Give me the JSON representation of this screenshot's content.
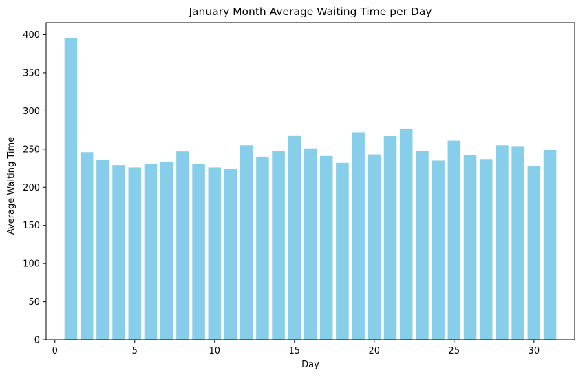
{
  "chart_data": {
    "type": "bar",
    "title": "January Month Average Waiting Time per Day",
    "xlabel": "Day",
    "ylabel": "Average Waiting Time",
    "x": [
      1,
      2,
      3,
      4,
      5,
      6,
      7,
      8,
      9,
      10,
      11,
      12,
      13,
      14,
      15,
      16,
      17,
      18,
      19,
      20,
      21,
      22,
      23,
      24,
      25,
      26,
      27,
      28,
      29,
      30,
      31
    ],
    "values": [
      396,
      246,
      236,
      229,
      226,
      231,
      233,
      247,
      230,
      226,
      224,
      255,
      240,
      248,
      268,
      251,
      241,
      232,
      272,
      243,
      267,
      277,
      248,
      235,
      261,
      242,
      237,
      255,
      254,
      228,
      249
    ],
    "xlim": [
      -0.55,
      32.55
    ],
    "ylim": [
      0,
      415.8
    ],
    "xticks": [
      0,
      5,
      10,
      15,
      20,
      25,
      30
    ],
    "yticks": [
      0,
      50,
      100,
      150,
      200,
      250,
      300,
      350,
      400
    ],
    "bar_color": "#87ceeb",
    "grid": false,
    "legend": "none"
  }
}
